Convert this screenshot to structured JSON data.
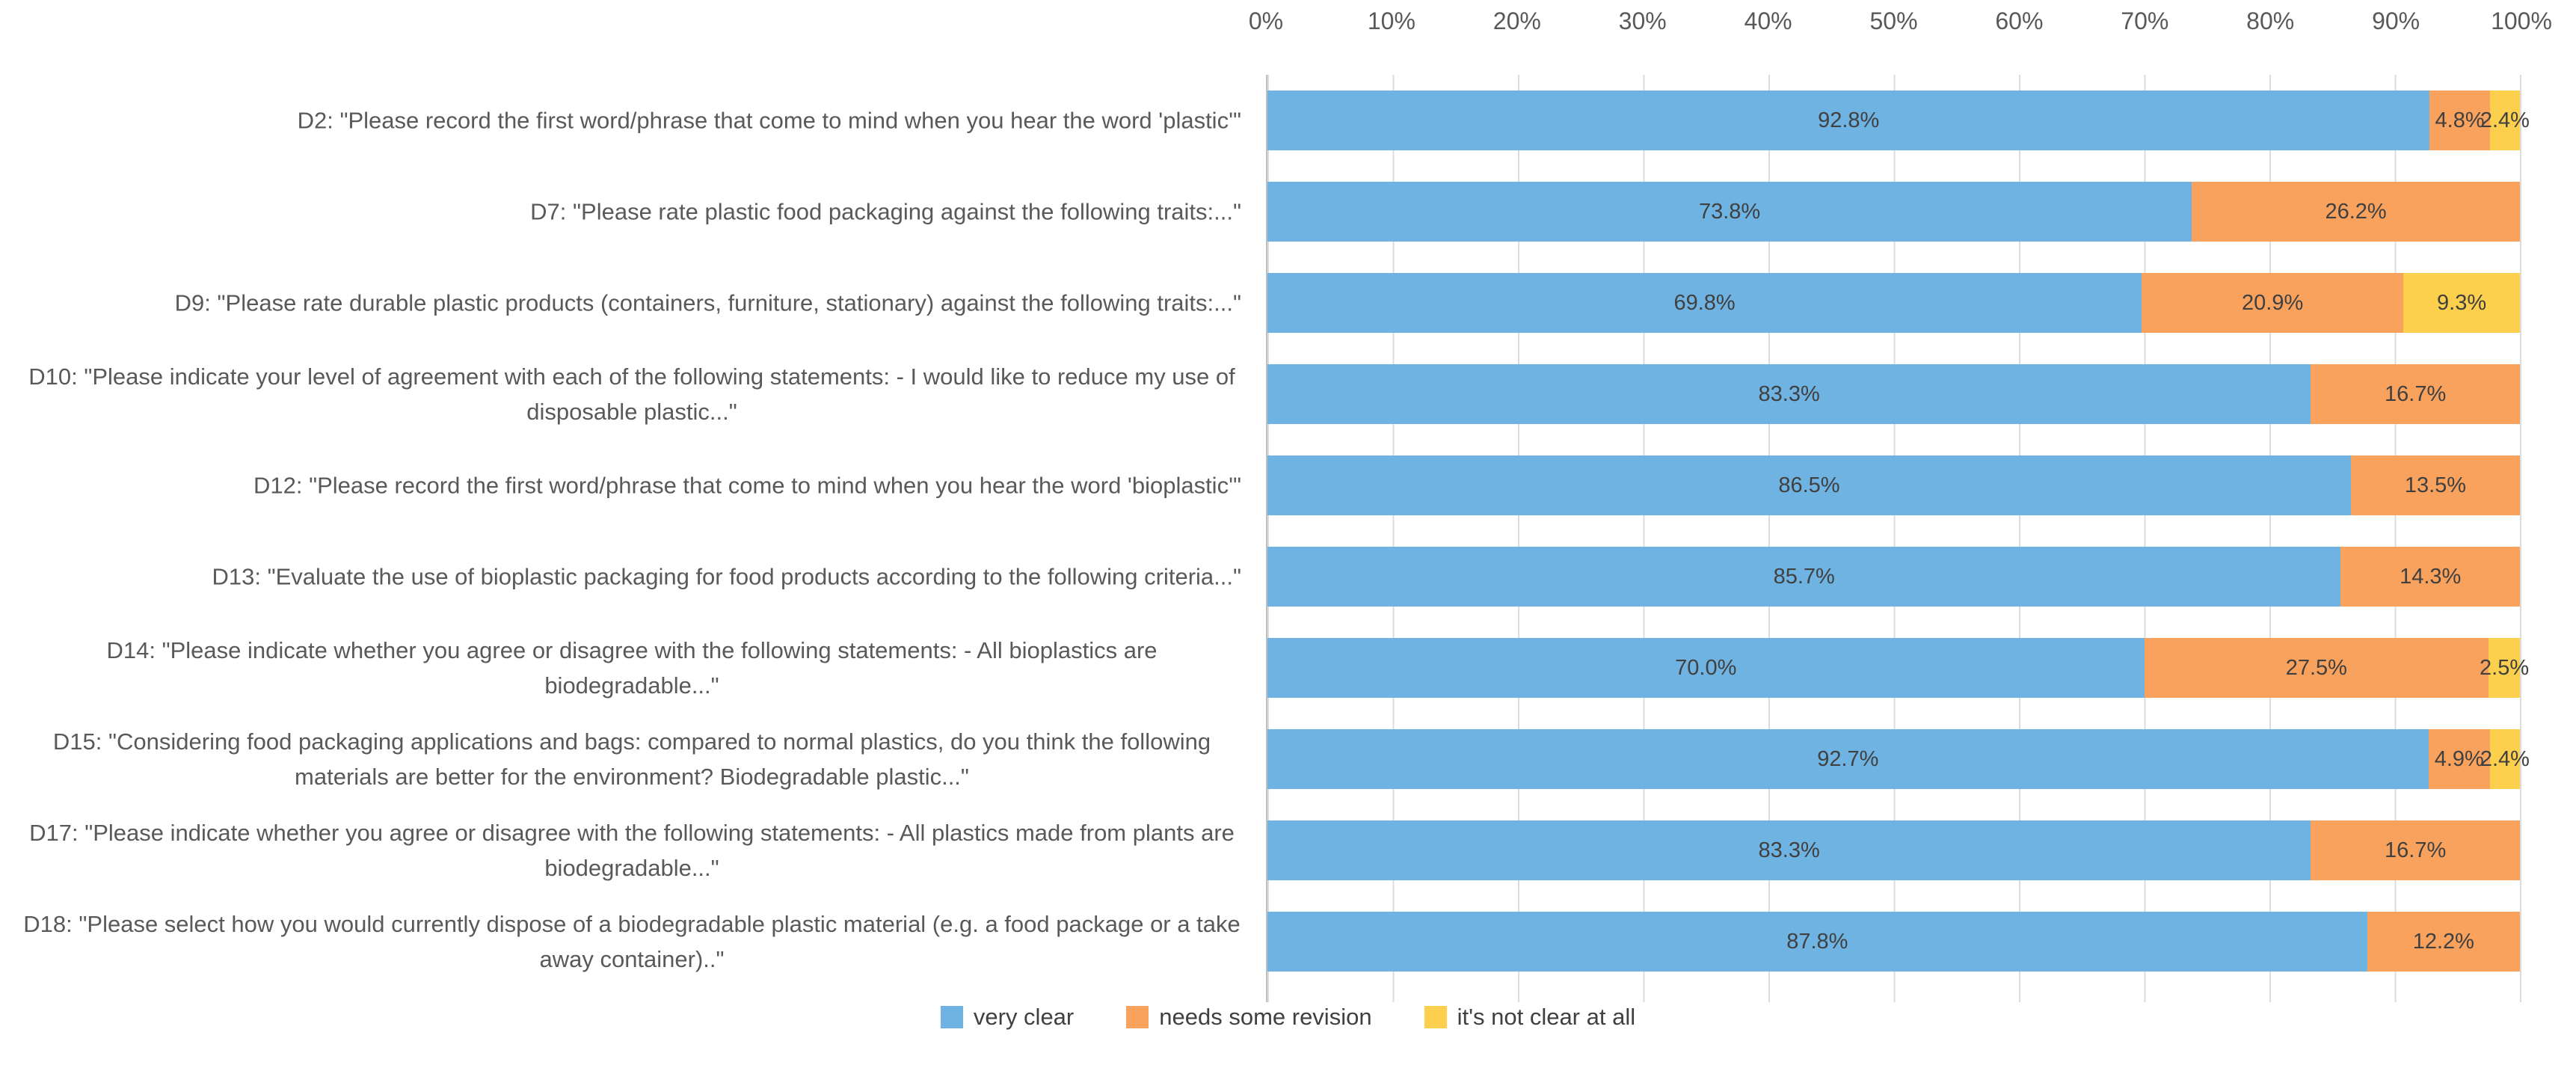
{
  "chart_data": {
    "type": "bar",
    "orientation": "horizontal",
    "stacked": true,
    "title": "",
    "x_axis": {
      "position": "top",
      "ticks": [
        "0%",
        "10%",
        "20%",
        "30%",
        "40%",
        "50%",
        "60%",
        "70%",
        "80%",
        "90%",
        "100%"
      ],
      "range": [
        0,
        100
      ],
      "grid": true
    },
    "categories": [
      "D2: \"Please record the first word/phrase that come to mind when you hear the word 'plastic'\"",
      "D7: \"Please rate plastic food packaging against the following traits:...\"",
      "D9: \"Please rate durable plastic products (containers, furniture, stationary) against the following traits:...\"",
      "D10: \"Please indicate your level of agreement with each of the following statements: - I would like to reduce my use of disposable plastic...\"",
      "D12: \"Please record the first word/phrase that come to mind when you hear the word 'bioplastic'\"",
      "D13: \"Evaluate the use of bioplastic packaging for food products according to the following criteria...\"",
      "D14: \"Please indicate whether you agree or disagree with the following statements: - All bioplastics are biodegradable...\"",
      "D15: \"Considering food packaging applications and bags: compared to normal plastics, do you think the following materials are better for the environment? Biodegradable plastic...\"",
      "D17: \"Please indicate whether you agree or disagree with the following statements: - All plastics made from plants are biodegradable...\"",
      "D18: \"Please select how you would currently dispose of a biodegradable plastic material (e.g. a food package or a take away container)..\""
    ],
    "series": [
      {
        "name": "very clear",
        "color": "#6FB3E3",
        "values": [
          92.8,
          73.8,
          69.8,
          83.3,
          86.5,
          85.7,
          70.0,
          92.7,
          83.3,
          87.8
        ]
      },
      {
        "name": "needs some revision",
        "color": "#F8A25E",
        "values": [
          4.8,
          26.2,
          20.9,
          16.7,
          13.5,
          14.3,
          27.5,
          4.9,
          16.7,
          12.2
        ]
      },
      {
        "name": "it's not clear at all",
        "color": "#FCD04C",
        "values": [
          2.4,
          0,
          9.3,
          0,
          0,
          0,
          2.5,
          2.4,
          0,
          0
        ]
      }
    ],
    "data_labels": {
      "show": true,
      "format": "one-decimal-percent"
    },
    "legend_position": "bottom"
  },
  "style_colors": {
    "gridline": "#dcdcdc",
    "axis_line": "#c0c0c0",
    "tick_text": "#595959",
    "category_text": "#595959",
    "data_label_text": "#404040"
  }
}
